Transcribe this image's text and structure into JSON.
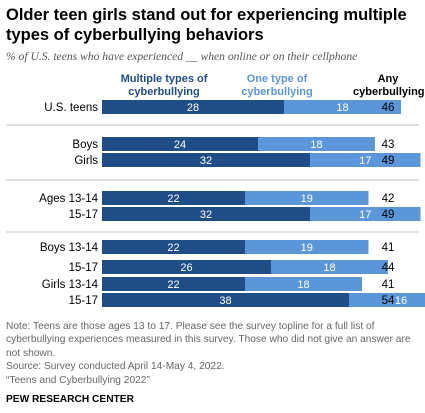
{
  "title": "Older teen girls stand out for experiencing multiple types of cyberbullying behaviors",
  "subtitle": "% of U.S. teens who have experienced __ when online or on their cellphone",
  "colors": {
    "multiple": "#1f4e86",
    "one": "#5b96d8",
    "divider": "#bfbfbf"
  },
  "chart_data": {
    "type": "bar",
    "stacked": true,
    "orientation": "horizontal",
    "categories": [
      "U.S. teens",
      "Boys",
      "Girls",
      "Ages 13-14",
      "15-17",
      "Boys 13-14",
      "15-17",
      "Girls 13-14",
      "15-17"
    ],
    "series": [
      {
        "name": "Multiple types of cyberbullying",
        "values": [
          28,
          24,
          32,
          22,
          32,
          22,
          26,
          22,
          38
        ]
      },
      {
        "name": "One type of cyberbullying",
        "values": [
          18,
          18,
          17,
          19,
          17,
          19,
          18,
          18,
          16
        ]
      }
    ],
    "any_column_label": "Any cyberbullying",
    "any_values": [
      46,
      43,
      49,
      42,
      49,
      41,
      44,
      41,
      54
    ],
    "groups": [
      [
        0
      ],
      [
        1,
        2
      ],
      [
        3,
        4
      ],
      [
        5,
        6,
        7,
        8
      ]
    ]
  },
  "note": "Note: Teens are those ages 13 to 17. Please see the survey topline for a full list of cyberbullying experiences measured in this survey. Those who did not give an answer are not shown.",
  "source": "Source: Survey conducted April 14-May 4, 2022.",
  "report": "“Teens and Cyberbullying 2022”",
  "footer": "PEW RESEARCH CENTER"
}
